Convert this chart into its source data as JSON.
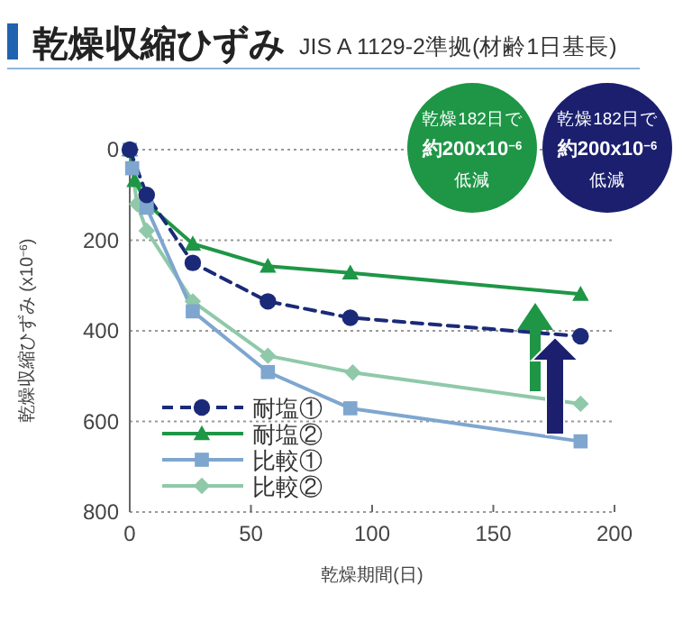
{
  "chart_data": {
    "type": "line",
    "title": "乾燥収縮ひずみ",
    "subtitle": "JIS A 1129-2準拠(材齢1日基長)",
    "xlabel": "乾燥期間(日)",
    "ylabel": "乾燥収縮ひずみ (x10$^{−6}$)",
    "xlim": [
      0,
      200
    ],
    "xticks": [
      0,
      50,
      100,
      150,
      200
    ],
    "ylim": [
      800,
      0
    ],
    "yticks": [
      0,
      200,
      400,
      600,
      800
    ],
    "grid": "y",
    "legend": "bottom left",
    "series": [
      {
        "name": "耐塩①",
        "color": "#1b2a78",
        "marker": "circle",
        "line_style": "dashed",
        "x": [
          0,
          7,
          26,
          57,
          91,
          186
        ],
        "values": [
          0,
          100,
          250,
          335,
          371,
          412
        ]
      },
      {
        "name": "耐塩②",
        "color": "#1e9646",
        "marker": "triangle",
        "line_style": "solid",
        "x": [
          0,
          2,
          7,
          26,
          57,
          91,
          186
        ],
        "values": [
          0,
          68,
          119,
          208,
          257,
          272,
          319
        ]
      },
      {
        "name": "比較①",
        "color": "#7ea6cf",
        "marker": "square",
        "line_style": "solid",
        "x": [
          0,
          1,
          7,
          26,
          57,
          91,
          186
        ],
        "values": [
          0,
          41,
          128,
          357,
          491,
          571,
          644
        ]
      },
      {
        "name": "比較②",
        "color": "#8fc9a9",
        "marker": "diamond",
        "line_style": "solid",
        "x": [
          0,
          3,
          7,
          26,
          57,
          92,
          186
        ],
        "values": [
          0,
          120,
          179,
          335,
          455,
          492,
          561
        ]
      }
    ],
    "annotations": [
      "乾燥182日で",
      "約200x10$^{−6}$",
      "低減",
      "乾燥182日で",
      "約200x10$^{−6}$",
      "低減"
    ]
  }
}
